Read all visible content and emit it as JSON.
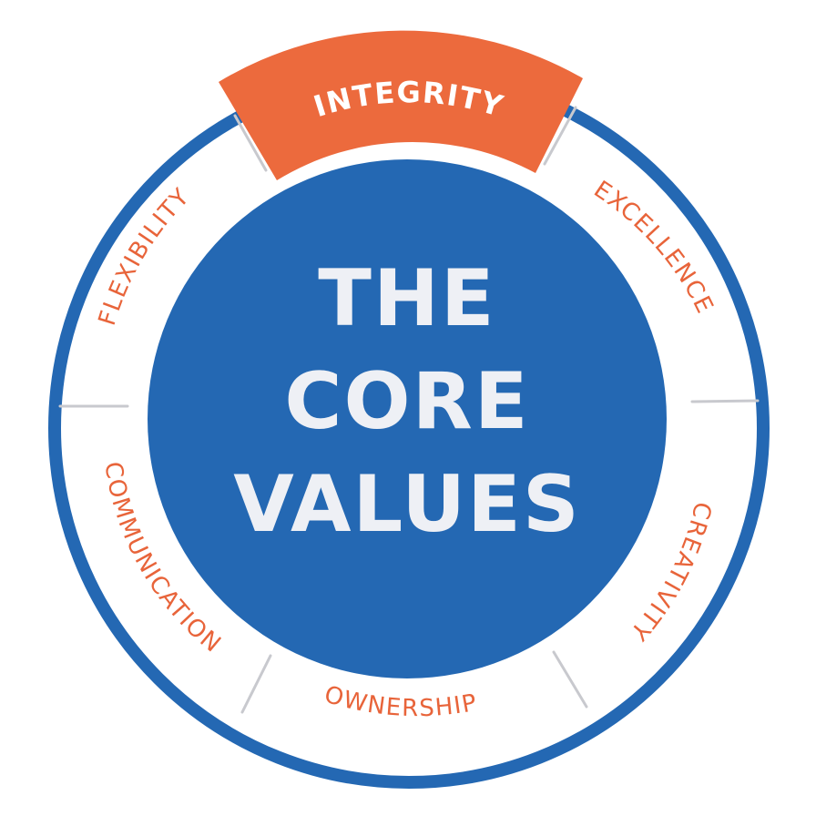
{
  "colors": {
    "ring": "#2468b3",
    "center": "#2468b3",
    "accent": "#ec6a3d",
    "label": "#e8643a",
    "divider": "#c8c9ce",
    "active_text": "#ffffff",
    "center_text": "#eef0f5",
    "background": "#ffffff"
  },
  "center": {
    "line1": "THE",
    "line2": "CORE",
    "line3": "VALUES"
  },
  "segments": [
    {
      "id": "integrity",
      "label": "INTEGRITY",
      "active": true
    },
    {
      "id": "excellence",
      "label": "EXCELLENCE",
      "active": false
    },
    {
      "id": "creativity",
      "label": "CREATIVITY",
      "active": false
    },
    {
      "id": "ownership",
      "label": "OWNERSHIP",
      "active": false
    },
    {
      "id": "communication",
      "label": "COMMUNICATION",
      "active": false
    },
    {
      "id": "flexibility",
      "label": "FLEXIBILITY",
      "active": false
    }
  ]
}
